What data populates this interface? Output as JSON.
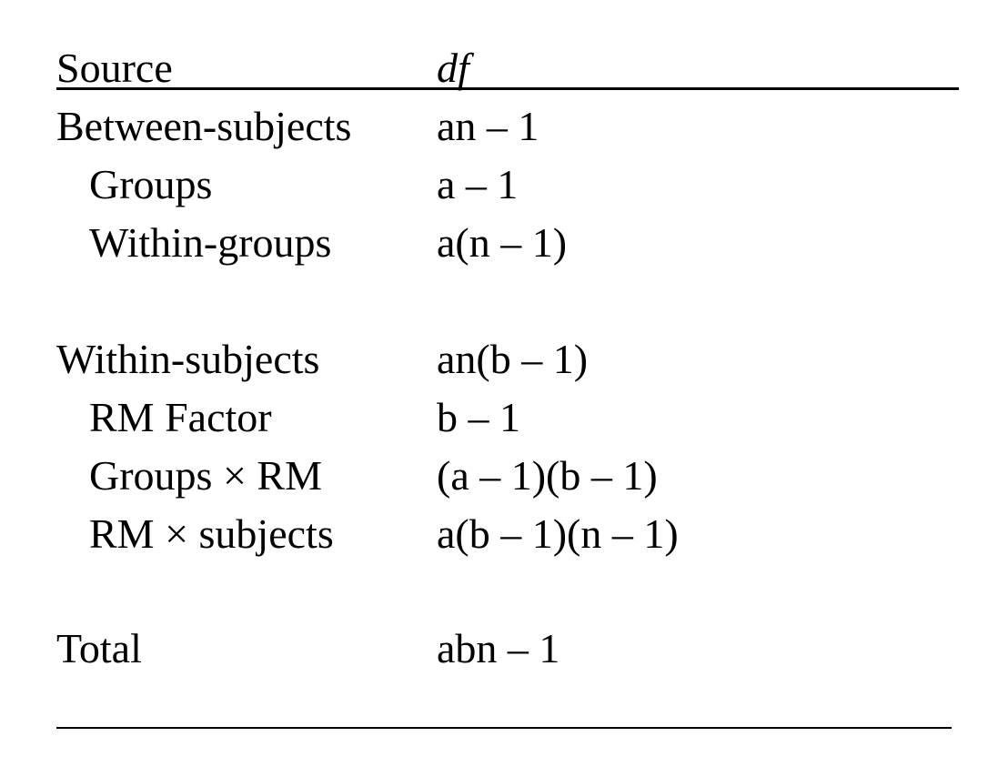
{
  "header": {
    "source": "Source",
    "df": "df"
  },
  "rows": [
    {
      "source": "Between-subjects",
      "df": "an – 1",
      "indent": false
    },
    {
      "source": "Groups",
      "df": "a – 1",
      "indent": true
    },
    {
      "source": "Within-groups",
      "df": "a(n – 1)",
      "indent": true
    },
    {
      "source": "Within-subjects",
      "df": "an(b – 1)",
      "indent": false
    },
    {
      "source": "RM Factor",
      "df": "b – 1",
      "indent": true
    },
    {
      "source": "Groups × RM",
      "df": "(a – 1)(b – 1)",
      "indent": true
    },
    {
      "source": "RM × subjects",
      "df": "a(b – 1)(n – 1)",
      "indent": true
    },
    {
      "source": "Total",
      "df": "abn – 1",
      "indent": false
    }
  ]
}
